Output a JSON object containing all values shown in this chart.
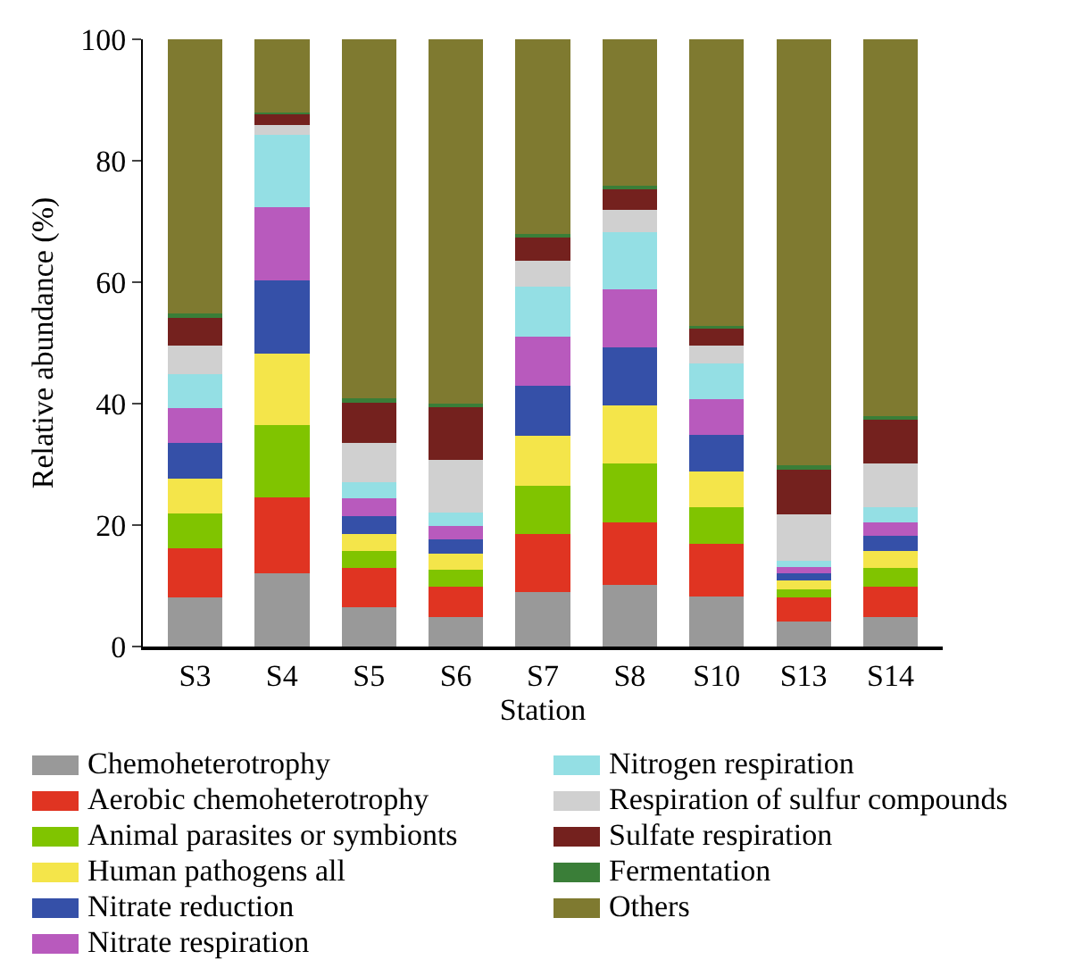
{
  "chart_data": {
    "type": "bar",
    "stacked": true,
    "xlabel": "Station",
    "ylabel": "Relative abundance (%)",
    "categories": [
      "S3",
      "S4",
      "S5",
      "S6",
      "S7",
      "S8",
      "S10",
      "S13",
      "S14"
    ],
    "ylim": [
      0,
      100
    ],
    "yticks": [
      0,
      20,
      40,
      60,
      80,
      100
    ],
    "grid": false,
    "legend": "bottom",
    "series": [
      {
        "name": "Chemoheterotrophy",
        "color": "#999999",
        "values": [
          8.1,
          12.1,
          6.4,
          4.9,
          9.0,
          10.2,
          8.3,
          4.1,
          4.9
        ]
      },
      {
        "name": "Aerobic chemoheterotrophy",
        "color": "#e03422",
        "values": [
          8.1,
          12.4,
          6.6,
          4.9,
          9.5,
          10.3,
          8.6,
          4.0,
          5.0
        ]
      },
      {
        "name": "Animal parasites or symbionts",
        "color": "#80c400",
        "values": [
          5.7,
          11.9,
          2.7,
          2.8,
          8.0,
          9.6,
          6.0,
          1.3,
          3.0
        ]
      },
      {
        "name": "Human pathogens all",
        "color": "#f4e54a",
        "values": [
          5.7,
          11.9,
          2.8,
          2.7,
          8.2,
          9.6,
          5.9,
          1.5,
          2.9
        ]
      },
      {
        "name": "Nitrate reduction",
        "color": "#3550a8",
        "values": [
          5.9,
          12.0,
          3.0,
          2.4,
          8.2,
          9.5,
          6.0,
          1.2,
          2.5
        ]
      },
      {
        "name": "Nitrate respiration",
        "color": "#b85abd",
        "values": [
          5.7,
          12.0,
          2.9,
          2.1,
          8.2,
          9.6,
          5.9,
          1.0,
          2.2
        ]
      },
      {
        "name": "Nitrogen respiration",
        "color": "#94dfe4",
        "values": [
          5.7,
          11.9,
          2.6,
          2.2,
          8.1,
          9.5,
          5.9,
          1.0,
          2.4
        ]
      },
      {
        "name": "Respiration of sulfur compounds",
        "color": "#d0d0d0",
        "values": [
          4.7,
          1.7,
          6.6,
          8.8,
          4.3,
          3.6,
          3.0,
          7.7,
          7.2
        ]
      },
      {
        "name": "Sulfate respiration",
        "color": "#74211e",
        "values": [
          4.8,
          1.8,
          6.5,
          8.7,
          4.1,
          3.5,
          2.9,
          7.5,
          7.2
        ]
      },
      {
        "name": "Fermentation",
        "color": "#3a7e38",
        "values": [
          0.5,
          0.2,
          0.8,
          0.5,
          0.4,
          0.5,
          0.3,
          0.5,
          0.7
        ]
      },
      {
        "name": "Others",
        "color": "#7f7a30",
        "values": [
          45.1,
          12.1,
          59.1,
          60.0,
          32.0,
          24.1,
          47.2,
          70.2,
          62.0
        ]
      }
    ]
  }
}
